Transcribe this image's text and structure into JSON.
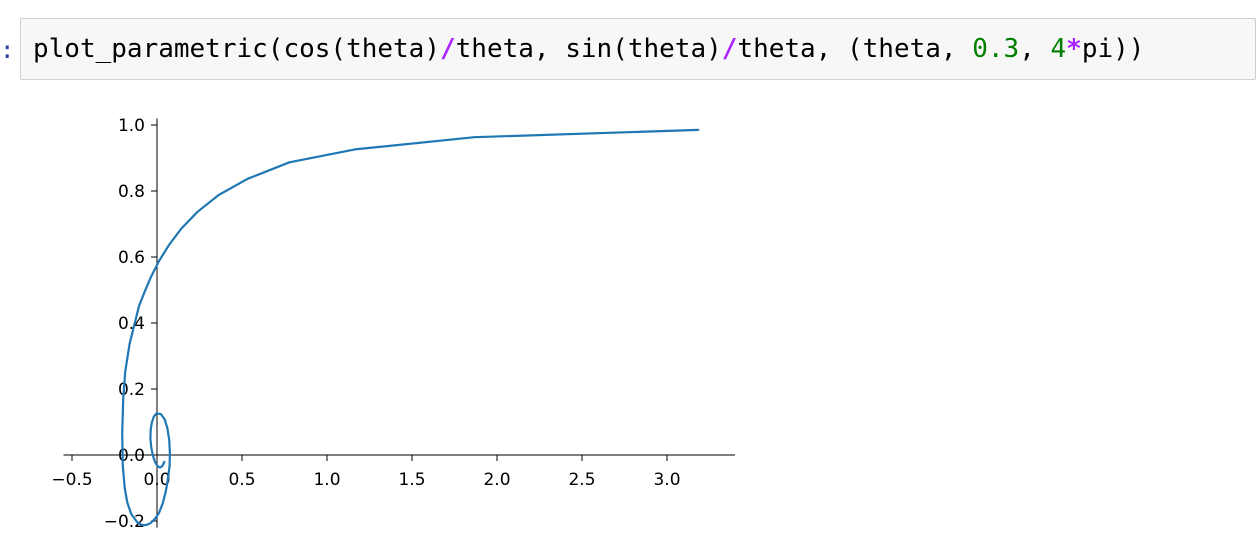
{
  "prompt": ":",
  "code_cell": {
    "tokens": [
      {
        "text": "plot_parametric(cos(theta)",
        "type": "plain"
      },
      {
        "text": "/",
        "type": "op"
      },
      {
        "text": "theta, sin(theta)",
        "type": "plain"
      },
      {
        "text": "/",
        "type": "op"
      },
      {
        "text": "theta, (theta, ",
        "type": "plain"
      },
      {
        "text": "0.3",
        "type": "num"
      },
      {
        "text": ", ",
        "type": "plain"
      },
      {
        "text": "4",
        "type": "num"
      },
      {
        "text": "*",
        "type": "op"
      },
      {
        "text": "pi))",
        "type": "plain"
      }
    ]
  },
  "chart_data": {
    "type": "line",
    "title": "",
    "xlabel": "",
    "ylabel": "",
    "xlim": [
      -0.55,
      3.4
    ],
    "ylim": [
      -0.22,
      1.02
    ],
    "xticks": [
      -0.5,
      0.0,
      0.5,
      1.0,
      1.5,
      2.0,
      2.5,
      3.0
    ],
    "xtick_labels": [
      "−0.5",
      "0.0",
      "0.5",
      "1.0",
      "1.5",
      "2.0",
      "2.5",
      "3.0"
    ],
    "yticks": [
      -0.2,
      0.0,
      0.2,
      0.4,
      0.6,
      0.8,
      1.0
    ],
    "ytick_labels": [
      "−0.2",
      "0.0",
      "0.2",
      "0.4",
      "0.6",
      "0.8",
      "1.0"
    ],
    "axes_through_origin": true,
    "grid": false,
    "series": [
      {
        "color": "#1f77b4",
        "x": [
          3.184,
          1.867,
          1.164,
          0.779,
          0.533,
          0.363,
          0.238,
          0.143,
          0.069,
          0.01,
          -0.037,
          -0.075,
          -0.106,
          -0.161,
          -0.187,
          -0.199,
          -0.205,
          -0.201,
          -0.19,
          -0.174,
          -0.151,
          -0.116,
          -0.09,
          -0.063,
          -0.037,
          -0.01,
          0.011,
          0.035,
          0.052,
          0.063,
          0.074,
          0.076,
          0.072,
          0.061,
          0.045,
          0.023,
          -0.003,
          -0.019,
          -0.03,
          -0.037,
          -0.039,
          -0.034,
          -0.025,
          -0.012,
          0.003,
          0.018,
          0.032,
          0.043
        ],
        "y": [
          0.985,
          0.963,
          0.926,
          0.887,
          0.837,
          0.788,
          0.737,
          0.686,
          0.635,
          0.586,
          0.538,
          0.492,
          0.451,
          0.337,
          0.252,
          0.168,
          0.066,
          -0.033,
          -0.1,
          -0.145,
          -0.179,
          -0.204,
          -0.212,
          -0.212,
          -0.206,
          -0.192,
          -0.176,
          -0.145,
          -0.11,
          -0.078,
          -0.033,
          0.007,
          0.046,
          0.081,
          0.108,
          0.124,
          0.126,
          0.116,
          0.099,
          0.077,
          0.05,
          0.024,
          -0.001,
          -0.021,
          -0.034,
          -0.038,
          -0.033,
          -0.021
        ]
      }
    ]
  }
}
